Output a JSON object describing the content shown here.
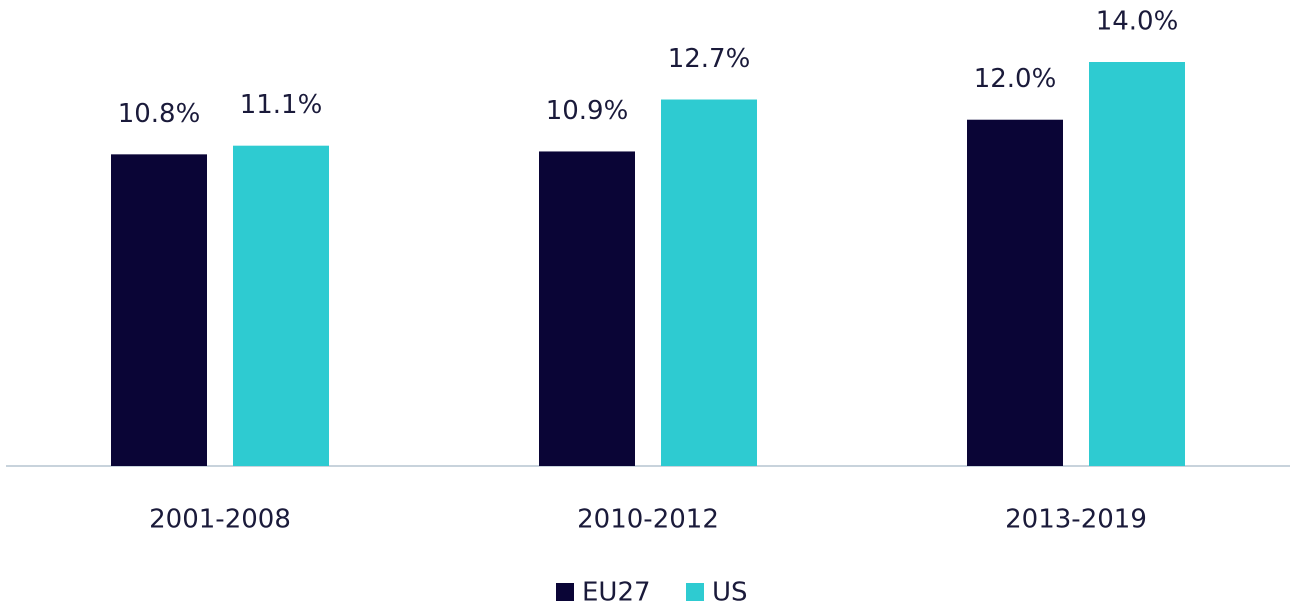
{
  "chart_data": {
    "type": "bar",
    "categories": [
      "2001-2008",
      "2010-2012",
      "2013-2019"
    ],
    "series": [
      {
        "name": "EU27",
        "color": "#0a0536",
        "values": [
          10.8,
          10.9,
          12.0
        ],
        "value_labels": [
          "10.8%",
          "10.9%",
          "12.0%"
        ]
      },
      {
        "name": "US",
        "color": "#2ecbd1",
        "values": [
          11.1,
          12.7,
          14.0
        ],
        "value_labels": [
          "11.1%",
          "12.7%",
          "14.0%"
        ]
      }
    ]
  }
}
